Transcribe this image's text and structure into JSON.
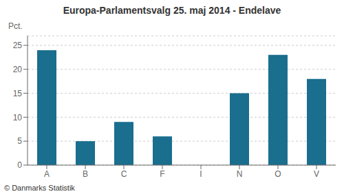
{
  "chart_data": {
    "type": "bar",
    "title": "Europa-Parlamentsvalg 25. maj 2014 - Endelave",
    "ylabel": "Pct.",
    "footer": "© Danmarks Statistik",
    "categories": [
      "A",
      "B",
      "C",
      "F",
      "I",
      "N",
      "O",
      "V"
    ],
    "values": [
      24.0,
      5.0,
      9.0,
      6.0,
      0.0,
      15.0,
      23.0,
      18.0
    ],
    "color": "#1a6e8e",
    "ylim": [
      0,
      27
    ],
    "yticks": [
      0,
      5,
      10,
      15,
      20,
      25
    ],
    "grid": true
  }
}
